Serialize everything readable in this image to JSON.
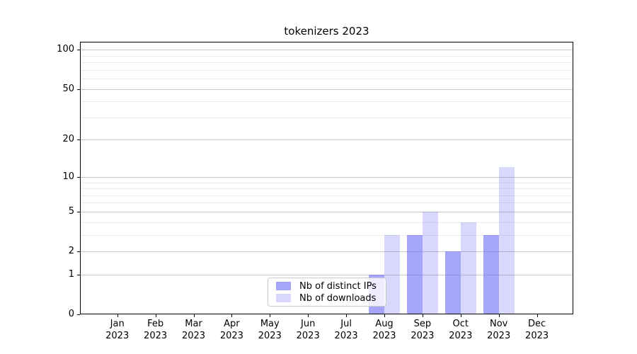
{
  "chart_data": {
    "type": "bar",
    "title": "tokenizers 2023",
    "categories": [
      "Jan 2023",
      "Feb 2023",
      "Mar 2023",
      "Apr 2023",
      "May 2023",
      "Jun 2023",
      "Jul 2023",
      "Aug 2023",
      "Sep 2023",
      "Oct 2023",
      "Nov 2023",
      "Dec 2023"
    ],
    "series": [
      {
        "name": "Nb of distinct IPs",
        "color": "#6e6ef5",
        "alpha": 0.62,
        "values": [
          0,
          0,
          0,
          0,
          0,
          0,
          0,
          1,
          3,
          2,
          3,
          0
        ]
      },
      {
        "name": "Nb of downloads",
        "color": "#6e6ef5",
        "alpha": 0.27,
        "values": [
          0,
          0,
          0,
          0,
          0,
          0,
          0,
          3,
          5,
          4,
          12,
          0
        ]
      }
    ],
    "xlabel": "",
    "ylabel": "",
    "y_scale": "log10(1+y)",
    "y_major_ticks": [
      0,
      1,
      2,
      5,
      10,
      20,
      50,
      100
    ],
    "y_minor_ticks": [
      3,
      4,
      6,
      7,
      8,
      9,
      30,
      40,
      60,
      70,
      80,
      90
    ],
    "ylim": [
      0,
      115
    ],
    "grid": "horizontal-only",
    "legend_position": "lower center",
    "grid_major_color": "#c9c9c9",
    "grid_minor_color": "#ebebeb",
    "axis_color": "#000000",
    "background_color": "#ffffff"
  }
}
